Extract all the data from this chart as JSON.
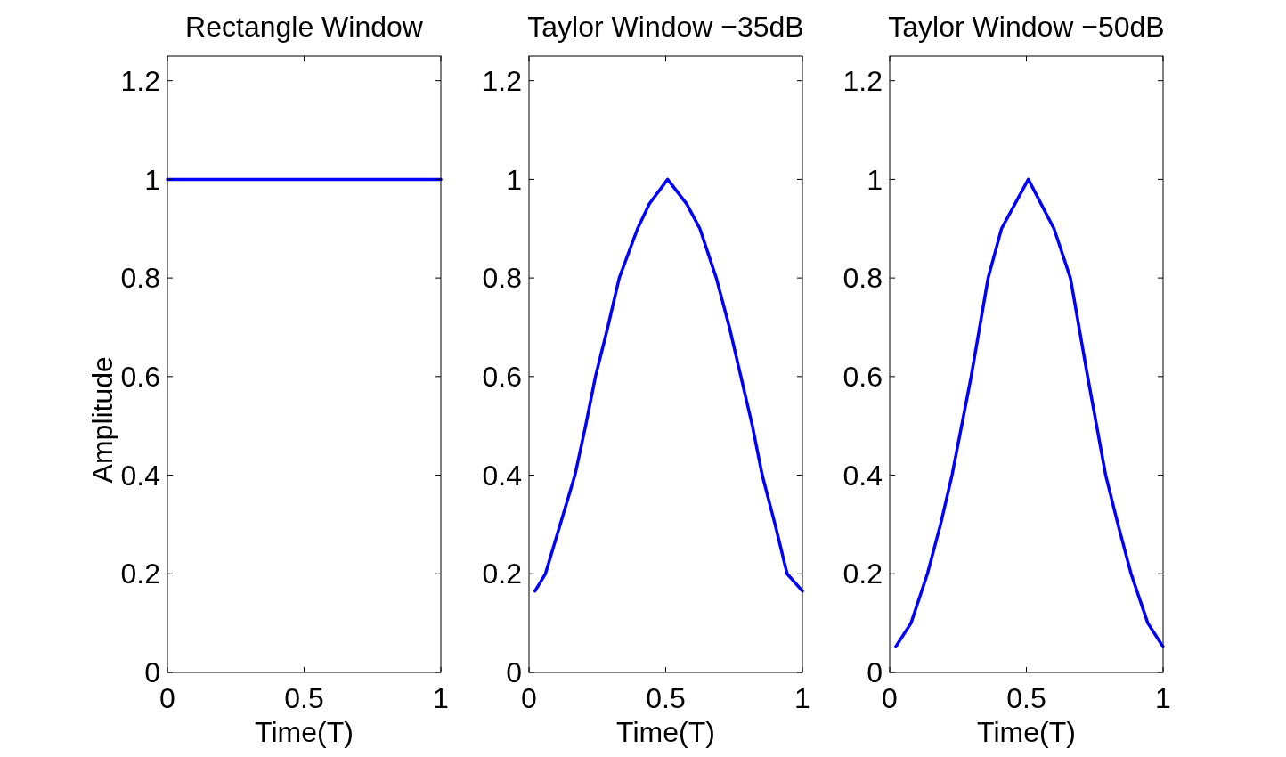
{
  "chart_data": [
    {
      "type": "line",
      "title": "Rectangle Window",
      "xlabel": "Time(T)",
      "ylabel": "Amplitude",
      "xlim": [
        0,
        1
      ],
      "xticks": [
        0,
        0.5,
        1
      ],
      "ylim": [
        0,
        1.25
      ],
      "yticks": [
        0,
        0.2,
        0.4,
        0.6,
        0.8,
        1,
        1.2
      ],
      "series": [
        {
          "color": "#0000ff",
          "x": [
            0,
            1
          ],
          "values": [
            1,
            1
          ]
        }
      ]
    },
    {
      "type": "line",
      "title": "Taylor Window −35dB",
      "xlabel": "Time(T)",
      "xlim": [
        0,
        1
      ],
      "xticks": [
        0,
        0.5,
        1
      ],
      "ylim": [
        0,
        1.25
      ],
      "yticks": [
        0,
        0.2,
        0.4,
        0.6,
        0.8,
        1,
        1.2
      ],
      "series": [
        {
          "color": "#0000ff",
          "x": [
            0.022,
            0.06,
            0.114,
            0.168,
            0.207,
            0.243,
            0.288,
            0.33,
            0.397,
            0.44,
            0.507,
            0.577,
            0.625,
            0.685,
            0.733,
            0.775,
            0.817,
            0.853,
            0.9,
            0.944,
            1
          ],
          "values": [
            0.165,
            0.2,
            0.3,
            0.4,
            0.5,
            0.6,
            0.7,
            0.8,
            0.9,
            0.95,
            1,
            0.95,
            0.9,
            0.8,
            0.7,
            0.6,
            0.5,
            0.4,
            0.3,
            0.2,
            0.165
          ]
        }
      ]
    },
    {
      "type": "line",
      "title": "Taylor Window −50dB",
      "xlabel": "Time(T)",
      "xlim": [
        0,
        1
      ],
      "xticks": [
        0,
        0.5,
        1
      ],
      "ylim": [
        0,
        1.25
      ],
      "yticks": [
        0,
        0.2,
        0.4,
        0.6,
        0.8,
        1,
        1.2
      ],
      "series": [
        {
          "color": "#0000ff",
          "x": [
            0.022,
            0.078,
            0.138,
            0.186,
            0.228,
            0.298,
            0.36,
            0.409,
            0.507,
            0.601,
            0.661,
            0.724,
            0.79,
            0.835,
            0.883,
            0.944,
            1
          ],
          "values": [
            0.052,
            0.1,
            0.2,
            0.3,
            0.4,
            0.6,
            0.8,
            0.9,
            1,
            0.9,
            0.8,
            0.6,
            0.4,
            0.3,
            0.2,
            0.1,
            0.052
          ]
        }
      ]
    }
  ]
}
